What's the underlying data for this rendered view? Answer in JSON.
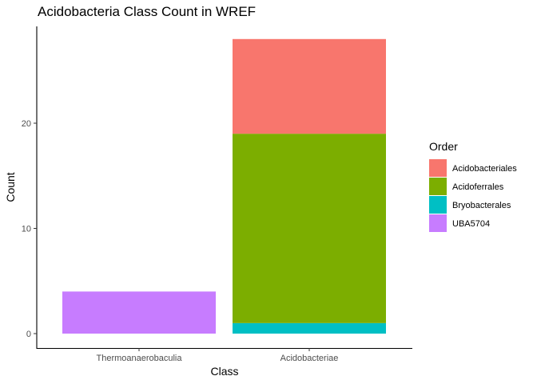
{
  "chart_data": {
    "type": "bar",
    "stacked": true,
    "title": "Acidobacteria Class Count in WREF",
    "xlabel": "Class",
    "ylabel": "Count",
    "categories": [
      "Thermoanaerobaculia",
      "Acidobacteriae"
    ],
    "ylim": [
      0,
      28
    ],
    "yticks": [
      0,
      10,
      20
    ],
    "grid": false,
    "legend": {
      "title": "Order",
      "placement": "right",
      "entries": [
        "Acidobacteriales",
        "Acidoferrales",
        "Bryobacterales",
        "UBA5704"
      ]
    },
    "series": [
      {
        "name": "Acidobacteriales",
        "color": "#F8766D",
        "values": [
          0,
          9
        ]
      },
      {
        "name": "Acidoferrales",
        "color": "#7CAE00",
        "values": [
          0,
          18
        ]
      },
      {
        "name": "Bryobacterales",
        "color": "#00BFC4",
        "values": [
          0,
          1
        ]
      },
      {
        "name": "UBA5704",
        "color": "#C77CFF",
        "values": [
          4,
          0
        ]
      }
    ],
    "stack_order": [
      "Bryobacterales",
      "UBA5704",
      "Acidoferrales",
      "Acidobacteriales"
    ]
  }
}
